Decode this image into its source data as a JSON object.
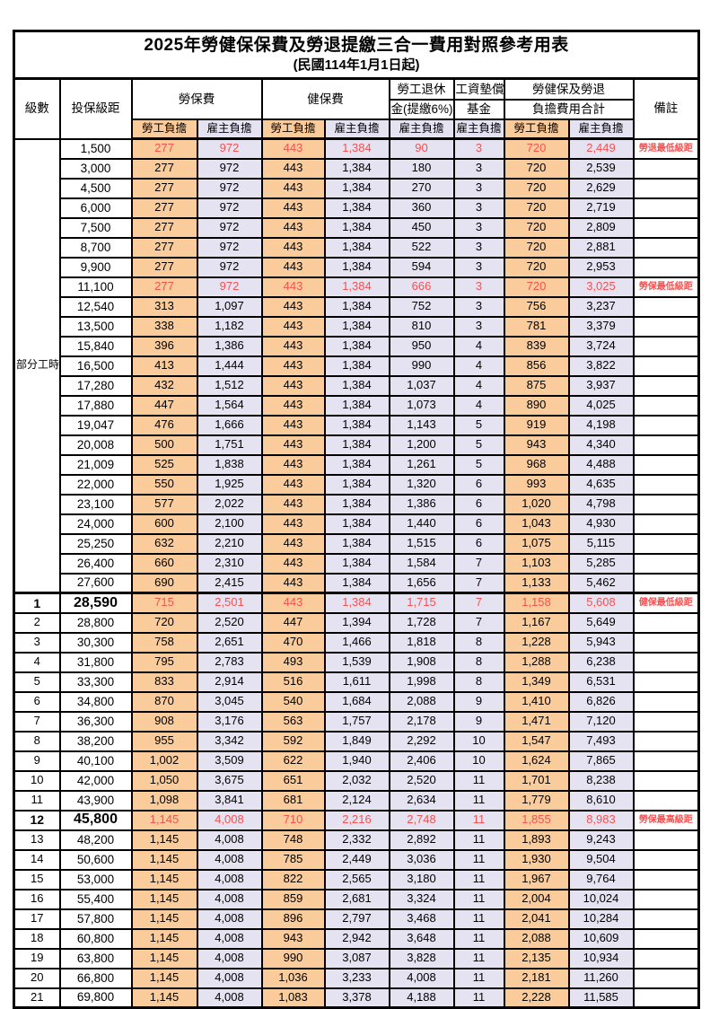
{
  "title": "2025年勞健保保費及勞退提繳三合一費用對照參考用表",
  "subtitle": "(民國114年1月1日起)",
  "colors": {
    "labor_share_bg": "#FACB9B",
    "employer_share_bg": "#E5E2F2",
    "highlight_text": "#F85050",
    "grid_line": "#000000"
  },
  "header": {
    "level": "級數",
    "bracket": "投保級距",
    "labor_insurance": "勞保費",
    "health_insurance": "健保費",
    "pension_line1": "勞工退休",
    "pension_line2": "金(提繳6%)",
    "wage_fund_line1": "工資墊償",
    "wage_fund_line2": "基金",
    "total_line1": "勞健保及勞退",
    "total_line2": "負擔費用合計",
    "note": "備註",
    "labor_share": "勞工負擔",
    "employer_share": "雇主負擔"
  },
  "part_time_label": "部分工時",
  "part_time_rowspan": 23,
  "rows": [
    {
      "level": "",
      "bracket": "1,500",
      "li_l": "277",
      "li_e": "972",
      "hi_l": "443",
      "hi_e": "1,384",
      "pen": "90",
      "fund": "3",
      "tot_l": "720",
      "tot_e": "2,449",
      "note": "勞退最低級距",
      "highlight": true,
      "emphasis": false,
      "section_start": false
    },
    {
      "level": "",
      "bracket": "3,000",
      "li_l": "277",
      "li_e": "972",
      "hi_l": "443",
      "hi_e": "1,384",
      "pen": "180",
      "fund": "3",
      "tot_l": "720",
      "tot_e": "2,539",
      "note": "",
      "highlight": false,
      "emphasis": false,
      "section_start": false
    },
    {
      "level": "",
      "bracket": "4,500",
      "li_l": "277",
      "li_e": "972",
      "hi_l": "443",
      "hi_e": "1,384",
      "pen": "270",
      "fund": "3",
      "tot_l": "720",
      "tot_e": "2,629",
      "note": "",
      "highlight": false,
      "emphasis": false,
      "section_start": false
    },
    {
      "level": "",
      "bracket": "6,000",
      "li_l": "277",
      "li_e": "972",
      "hi_l": "443",
      "hi_e": "1,384",
      "pen": "360",
      "fund": "3",
      "tot_l": "720",
      "tot_e": "2,719",
      "note": "",
      "highlight": false,
      "emphasis": false,
      "section_start": false
    },
    {
      "level": "",
      "bracket": "7,500",
      "li_l": "277",
      "li_e": "972",
      "hi_l": "443",
      "hi_e": "1,384",
      "pen": "450",
      "fund": "3",
      "tot_l": "720",
      "tot_e": "2,809",
      "note": "",
      "highlight": false,
      "emphasis": false,
      "section_start": false
    },
    {
      "level": "",
      "bracket": "8,700",
      "li_l": "277",
      "li_e": "972",
      "hi_l": "443",
      "hi_e": "1,384",
      "pen": "522",
      "fund": "3",
      "tot_l": "720",
      "tot_e": "2,881",
      "note": "",
      "highlight": false,
      "emphasis": false,
      "section_start": false
    },
    {
      "level": "",
      "bracket": "9,900",
      "li_l": "277",
      "li_e": "972",
      "hi_l": "443",
      "hi_e": "1,384",
      "pen": "594",
      "fund": "3",
      "tot_l": "720",
      "tot_e": "2,953",
      "note": "",
      "highlight": false,
      "emphasis": false,
      "section_start": false
    },
    {
      "level": "",
      "bracket": "11,100",
      "li_l": "277",
      "li_e": "972",
      "hi_l": "443",
      "hi_e": "1,384",
      "pen": "666",
      "fund": "3",
      "tot_l": "720",
      "tot_e": "3,025",
      "note": "勞保最低級距",
      "highlight": true,
      "emphasis": false,
      "section_start": false
    },
    {
      "level": "",
      "bracket": "12,540",
      "li_l": "313",
      "li_e": "1,097",
      "hi_l": "443",
      "hi_e": "1,384",
      "pen": "752",
      "fund": "3",
      "tot_l": "756",
      "tot_e": "3,237",
      "note": "",
      "highlight": false,
      "emphasis": false,
      "section_start": false
    },
    {
      "level": "",
      "bracket": "13,500",
      "li_l": "338",
      "li_e": "1,182",
      "hi_l": "443",
      "hi_e": "1,384",
      "pen": "810",
      "fund": "3",
      "tot_l": "781",
      "tot_e": "3,379",
      "note": "",
      "highlight": false,
      "emphasis": false,
      "section_start": false
    },
    {
      "level": "",
      "bracket": "15,840",
      "li_l": "396",
      "li_e": "1,386",
      "hi_l": "443",
      "hi_e": "1,384",
      "pen": "950",
      "fund": "4",
      "tot_l": "839",
      "tot_e": "3,724",
      "note": "",
      "highlight": false,
      "emphasis": false,
      "section_start": false
    },
    {
      "level": "",
      "bracket": "16,500",
      "li_l": "413",
      "li_e": "1,444",
      "hi_l": "443",
      "hi_e": "1,384",
      "pen": "990",
      "fund": "4",
      "tot_l": "856",
      "tot_e": "3,822",
      "note": "",
      "highlight": false,
      "emphasis": false,
      "section_start": false
    },
    {
      "level": "",
      "bracket": "17,280",
      "li_l": "432",
      "li_e": "1,512",
      "hi_l": "443",
      "hi_e": "1,384",
      "pen": "1,037",
      "fund": "4",
      "tot_l": "875",
      "tot_e": "3,937",
      "note": "",
      "highlight": false,
      "emphasis": false,
      "section_start": false
    },
    {
      "level": "",
      "bracket": "17,880",
      "li_l": "447",
      "li_e": "1,564",
      "hi_l": "443",
      "hi_e": "1,384",
      "pen": "1,073",
      "fund": "4",
      "tot_l": "890",
      "tot_e": "4,025",
      "note": "",
      "highlight": false,
      "emphasis": false,
      "section_start": false
    },
    {
      "level": "",
      "bracket": "19,047",
      "li_l": "476",
      "li_e": "1,666",
      "hi_l": "443",
      "hi_e": "1,384",
      "pen": "1,143",
      "fund": "5",
      "tot_l": "919",
      "tot_e": "4,198",
      "note": "",
      "highlight": false,
      "emphasis": false,
      "section_start": false
    },
    {
      "level": "",
      "bracket": "20,008",
      "li_l": "500",
      "li_e": "1,751",
      "hi_l": "443",
      "hi_e": "1,384",
      "pen": "1,200",
      "fund": "5",
      "tot_l": "943",
      "tot_e": "4,340",
      "note": "",
      "highlight": false,
      "emphasis": false,
      "section_start": false
    },
    {
      "level": "",
      "bracket": "21,009",
      "li_l": "525",
      "li_e": "1,838",
      "hi_l": "443",
      "hi_e": "1,384",
      "pen": "1,261",
      "fund": "5",
      "tot_l": "968",
      "tot_e": "4,488",
      "note": "",
      "highlight": false,
      "emphasis": false,
      "section_start": false
    },
    {
      "level": "",
      "bracket": "22,000",
      "li_l": "550",
      "li_e": "1,925",
      "hi_l": "443",
      "hi_e": "1,384",
      "pen": "1,320",
      "fund": "6",
      "tot_l": "993",
      "tot_e": "4,635",
      "note": "",
      "highlight": false,
      "emphasis": false,
      "section_start": false
    },
    {
      "level": "",
      "bracket": "23,100",
      "li_l": "577",
      "li_e": "2,022",
      "hi_l": "443",
      "hi_e": "1,384",
      "pen": "1,386",
      "fund": "6",
      "tot_l": "1,020",
      "tot_e": "4,798",
      "note": "",
      "highlight": false,
      "emphasis": false,
      "section_start": false
    },
    {
      "level": "",
      "bracket": "24,000",
      "li_l": "600",
      "li_e": "2,100",
      "hi_l": "443",
      "hi_e": "1,384",
      "pen": "1,440",
      "fund": "6",
      "tot_l": "1,043",
      "tot_e": "4,930",
      "note": "",
      "highlight": false,
      "emphasis": false,
      "section_start": false
    },
    {
      "level": "",
      "bracket": "25,250",
      "li_l": "632",
      "li_e": "2,210",
      "hi_l": "443",
      "hi_e": "1,384",
      "pen": "1,515",
      "fund": "6",
      "tot_l": "1,075",
      "tot_e": "5,115",
      "note": "",
      "highlight": false,
      "emphasis": false,
      "section_start": false
    },
    {
      "level": "",
      "bracket": "26,400",
      "li_l": "660",
      "li_e": "2,310",
      "hi_l": "443",
      "hi_e": "1,384",
      "pen": "1,584",
      "fund": "7",
      "tot_l": "1,103",
      "tot_e": "5,285",
      "note": "",
      "highlight": false,
      "emphasis": false,
      "section_start": false
    },
    {
      "level": "",
      "bracket": "27,600",
      "li_l": "690",
      "li_e": "2,415",
      "hi_l": "443",
      "hi_e": "1,384",
      "pen": "1,656",
      "fund": "7",
      "tot_l": "1,133",
      "tot_e": "5,462",
      "note": "",
      "highlight": false,
      "emphasis": false,
      "section_start": false
    },
    {
      "level": "1",
      "bracket": "28,590",
      "li_l": "715",
      "li_e": "2,501",
      "hi_l": "443",
      "hi_e": "1,384",
      "pen": "1,715",
      "fund": "7",
      "tot_l": "1,158",
      "tot_e": "5,608",
      "note": "健保最低級距",
      "highlight": true,
      "emphasis": true,
      "section_start": true
    },
    {
      "level": "2",
      "bracket": "28,800",
      "li_l": "720",
      "li_e": "2,520",
      "hi_l": "447",
      "hi_e": "1,394",
      "pen": "1,728",
      "fund": "7",
      "tot_l": "1,167",
      "tot_e": "5,649",
      "note": "",
      "highlight": false,
      "emphasis": false,
      "section_start": false
    },
    {
      "level": "3",
      "bracket": "30,300",
      "li_l": "758",
      "li_e": "2,651",
      "hi_l": "470",
      "hi_e": "1,466",
      "pen": "1,818",
      "fund": "8",
      "tot_l": "1,228",
      "tot_e": "5,943",
      "note": "",
      "highlight": false,
      "emphasis": false,
      "section_start": false
    },
    {
      "level": "4",
      "bracket": "31,800",
      "li_l": "795",
      "li_e": "2,783",
      "hi_l": "493",
      "hi_e": "1,539",
      "pen": "1,908",
      "fund": "8",
      "tot_l": "1,288",
      "tot_e": "6,238",
      "note": "",
      "highlight": false,
      "emphasis": false,
      "section_start": false
    },
    {
      "level": "5",
      "bracket": "33,300",
      "li_l": "833",
      "li_e": "2,914",
      "hi_l": "516",
      "hi_e": "1,611",
      "pen": "1,998",
      "fund": "8",
      "tot_l": "1,349",
      "tot_e": "6,531",
      "note": "",
      "highlight": false,
      "emphasis": false,
      "section_start": false
    },
    {
      "level": "6",
      "bracket": "34,800",
      "li_l": "870",
      "li_e": "3,045",
      "hi_l": "540",
      "hi_e": "1,684",
      "pen": "2,088",
      "fund": "9",
      "tot_l": "1,410",
      "tot_e": "6,826",
      "note": "",
      "highlight": false,
      "emphasis": false,
      "section_start": false
    },
    {
      "level": "7",
      "bracket": "36,300",
      "li_l": "908",
      "li_e": "3,176",
      "hi_l": "563",
      "hi_e": "1,757",
      "pen": "2,178",
      "fund": "9",
      "tot_l": "1,471",
      "tot_e": "7,120",
      "note": "",
      "highlight": false,
      "emphasis": false,
      "section_start": false
    },
    {
      "level": "8",
      "bracket": "38,200",
      "li_l": "955",
      "li_e": "3,342",
      "hi_l": "592",
      "hi_e": "1,849",
      "pen": "2,292",
      "fund": "10",
      "tot_l": "1,547",
      "tot_e": "7,493",
      "note": "",
      "highlight": false,
      "emphasis": false,
      "section_start": false
    },
    {
      "level": "9",
      "bracket": "40,100",
      "li_l": "1,002",
      "li_e": "3,509",
      "hi_l": "622",
      "hi_e": "1,940",
      "pen": "2,406",
      "fund": "10",
      "tot_l": "1,624",
      "tot_e": "7,865",
      "note": "",
      "highlight": false,
      "emphasis": false,
      "section_start": false
    },
    {
      "level": "10",
      "bracket": "42,000",
      "li_l": "1,050",
      "li_e": "3,675",
      "hi_l": "651",
      "hi_e": "2,032",
      "pen": "2,520",
      "fund": "11",
      "tot_l": "1,701",
      "tot_e": "8,238",
      "note": "",
      "highlight": false,
      "emphasis": false,
      "section_start": false
    },
    {
      "level": "11",
      "bracket": "43,900",
      "li_l": "1,098",
      "li_e": "3,841",
      "hi_l": "681",
      "hi_e": "2,124",
      "pen": "2,634",
      "fund": "11",
      "tot_l": "1,779",
      "tot_e": "8,610",
      "note": "",
      "highlight": false,
      "emphasis": false,
      "section_start": false
    },
    {
      "level": "12",
      "bracket": "45,800",
      "li_l": "1,145",
      "li_e": "4,008",
      "hi_l": "710",
      "hi_e": "2,216",
      "pen": "2,748",
      "fund": "11",
      "tot_l": "1,855",
      "tot_e": "8,983",
      "note": "勞保最高級距",
      "highlight": true,
      "emphasis": true,
      "section_start": false
    },
    {
      "level": "13",
      "bracket": "48,200",
      "li_l": "1,145",
      "li_e": "4,008",
      "hi_l": "748",
      "hi_e": "2,332",
      "pen": "2,892",
      "fund": "11",
      "tot_l": "1,893",
      "tot_e": "9,243",
      "note": "",
      "highlight": false,
      "emphasis": false,
      "section_start": false
    },
    {
      "level": "14",
      "bracket": "50,600",
      "li_l": "1,145",
      "li_e": "4,008",
      "hi_l": "785",
      "hi_e": "2,449",
      "pen": "3,036",
      "fund": "11",
      "tot_l": "1,930",
      "tot_e": "9,504",
      "note": "",
      "highlight": false,
      "emphasis": false,
      "section_start": false
    },
    {
      "level": "15",
      "bracket": "53,000",
      "li_l": "1,145",
      "li_e": "4,008",
      "hi_l": "822",
      "hi_e": "2,565",
      "pen": "3,180",
      "fund": "11",
      "tot_l": "1,967",
      "tot_e": "9,764",
      "note": "",
      "highlight": false,
      "emphasis": false,
      "section_start": false
    },
    {
      "level": "16",
      "bracket": "55,400",
      "li_l": "1,145",
      "li_e": "4,008",
      "hi_l": "859",
      "hi_e": "2,681",
      "pen": "3,324",
      "fund": "11",
      "tot_l": "2,004",
      "tot_e": "10,024",
      "note": "",
      "highlight": false,
      "emphasis": false,
      "section_start": false
    },
    {
      "level": "17",
      "bracket": "57,800",
      "li_l": "1,145",
      "li_e": "4,008",
      "hi_l": "896",
      "hi_e": "2,797",
      "pen": "3,468",
      "fund": "11",
      "tot_l": "2,041",
      "tot_e": "10,284",
      "note": "",
      "highlight": false,
      "emphasis": false,
      "section_start": false
    },
    {
      "level": "18",
      "bracket": "60,800",
      "li_l": "1,145",
      "li_e": "4,008",
      "hi_l": "943",
      "hi_e": "2,942",
      "pen": "3,648",
      "fund": "11",
      "tot_l": "2,088",
      "tot_e": "10,609",
      "note": "",
      "highlight": false,
      "emphasis": false,
      "section_start": false
    },
    {
      "level": "19",
      "bracket": "63,800",
      "li_l": "1,145",
      "li_e": "4,008",
      "hi_l": "990",
      "hi_e": "3,087",
      "pen": "3,828",
      "fund": "11",
      "tot_l": "2,135",
      "tot_e": "10,934",
      "note": "",
      "highlight": false,
      "emphasis": false,
      "section_start": false
    },
    {
      "level": "20",
      "bracket": "66,800",
      "li_l": "1,145",
      "li_e": "4,008",
      "hi_l": "1,036",
      "hi_e": "3,233",
      "pen": "4,008",
      "fund": "11",
      "tot_l": "2,181",
      "tot_e": "11,260",
      "note": "",
      "highlight": false,
      "emphasis": false,
      "section_start": false
    },
    {
      "level": "21",
      "bracket": "69,800",
      "li_l": "1,145",
      "li_e": "4,008",
      "hi_l": "1,083",
      "hi_e": "3,378",
      "pen": "4,188",
      "fund": "11",
      "tot_l": "2,228",
      "tot_e": "11,585",
      "note": "",
      "highlight": false,
      "emphasis": false,
      "section_start": false
    }
  ]
}
